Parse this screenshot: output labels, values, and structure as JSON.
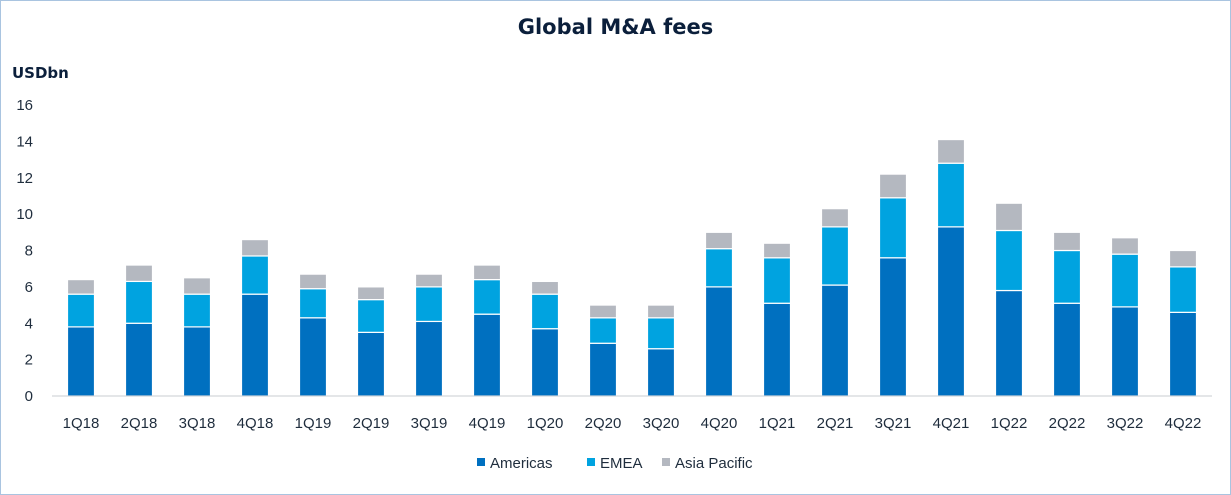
{
  "chart_data": {
    "type": "bar",
    "stacked": true,
    "title": "Global M&A fees",
    "ylabel": "USDbn",
    "xlabel": "",
    "ylim": [
      0,
      16
    ],
    "yticks": [
      "0",
      "2",
      "4",
      "6",
      "8",
      "10",
      "12",
      "14",
      "16"
    ],
    "categories": [
      "1Q18",
      "2Q18",
      "3Q18",
      "4Q18",
      "1Q19",
      "2Q19",
      "3Q19",
      "4Q19",
      "1Q20",
      "2Q20",
      "3Q20",
      "4Q20",
      "1Q21",
      "2Q21",
      "3Q21",
      "4Q21",
      "1Q22",
      "2Q22",
      "3Q22",
      "4Q22"
    ],
    "series": [
      {
        "name": "Americas",
        "color": "#0070c0",
        "values": [
          3.8,
          4.0,
          3.8,
          5.6,
          4.3,
          3.5,
          4.1,
          4.5,
          3.7,
          2.9,
          2.6,
          6.0,
          5.1,
          6.1,
          7.6,
          9.3,
          5.8,
          5.1,
          4.9,
          4.6
        ]
      },
      {
        "name": "EMEA",
        "color": "#00a3e0",
        "values": [
          1.8,
          2.3,
          1.8,
          2.1,
          1.6,
          1.8,
          1.9,
          1.9,
          1.9,
          1.4,
          1.7,
          2.1,
          2.5,
          3.2,
          3.3,
          3.5,
          3.3,
          2.9,
          2.9,
          2.5
        ]
      },
      {
        "name": "Asia Pacific",
        "color": "#b4b8c0",
        "values": [
          0.8,
          0.9,
          0.9,
          0.9,
          0.8,
          0.7,
          0.7,
          0.8,
          0.7,
          0.7,
          0.7,
          0.9,
          0.8,
          1.0,
          1.3,
          1.3,
          1.5,
          1.0,
          0.9,
          0.9
        ]
      }
    ],
    "legend": "bottom",
    "grid": false
  }
}
